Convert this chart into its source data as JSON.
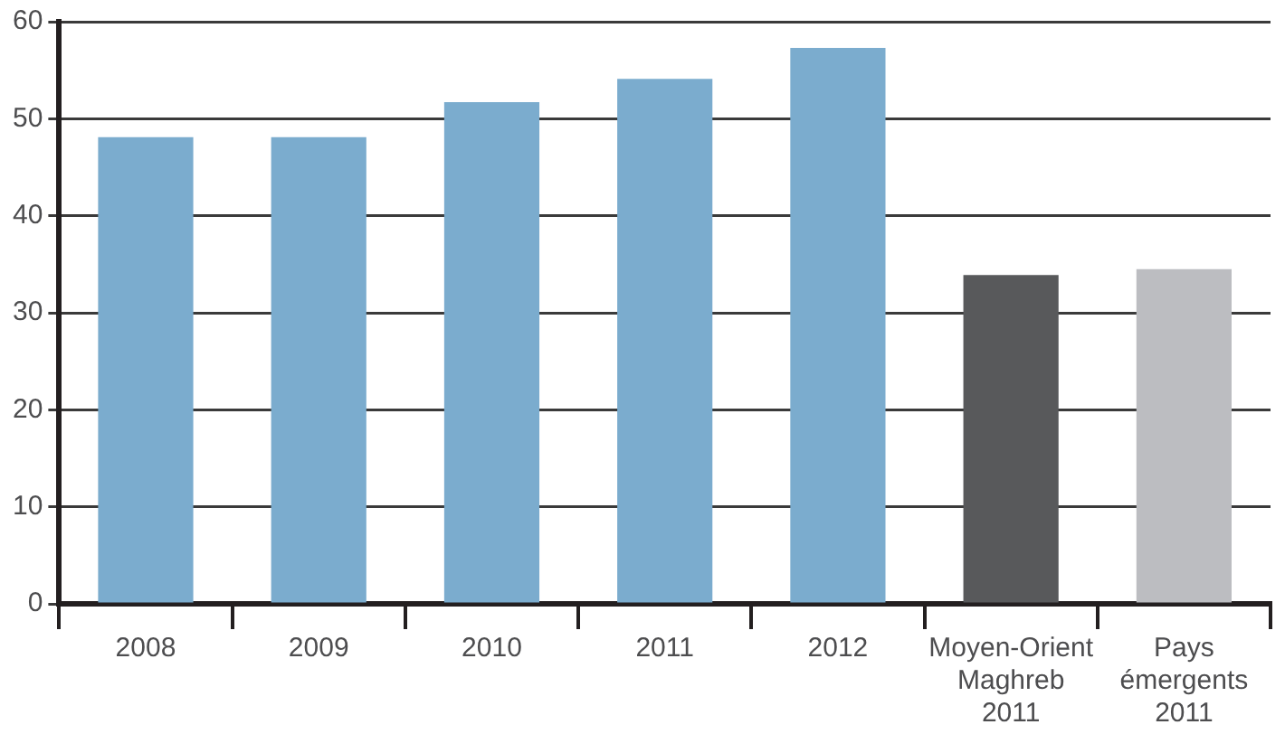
{
  "chart_data": {
    "type": "bar",
    "categories": [
      "2008",
      "2009",
      "2010",
      "2011",
      "2012",
      "Moyen-Orient\nMaghreb\n2011",
      "Pays\némergents\n2011"
    ],
    "values": [
      48.1,
      48.1,
      51.7,
      54.1,
      57.3,
      33.9,
      34.5
    ],
    "colors": [
      "#7bacce",
      "#7bacce",
      "#7bacce",
      "#7bacce",
      "#7bacce",
      "#58595b",
      "#bcbdc1"
    ],
    "ylim": [
      0,
      60
    ],
    "yticks": [
      0,
      10,
      20,
      30,
      40,
      50,
      60
    ],
    "grid": "y",
    "legend": false
  }
}
